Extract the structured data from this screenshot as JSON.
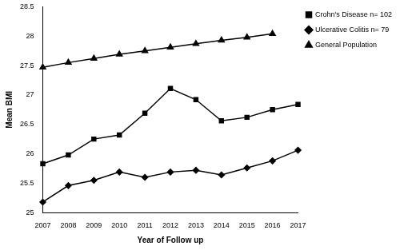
{
  "chart_data": {
    "type": "line",
    "x_label": "Year of Follow up",
    "y_label": "Mean BMI",
    "categories": [
      "2007",
      "2008",
      "2009",
      "2010",
      "2011",
      "2012",
      "2013",
      "2014",
      "2015",
      "2016",
      "2017"
    ],
    "series": [
      {
        "name": "Crohn's Disease n= 102",
        "color": "#000000",
        "marker": "square",
        "values": [
          25.83,
          25.98,
          26.25,
          26.32,
          26.69,
          27.11,
          26.92,
          26.56,
          26.62,
          26.75,
          26.84
        ]
      },
      {
        "name": "Ulcerative Colitis n= 79",
        "color": "#000000",
        "marker": "diamond",
        "values": [
          25.18,
          25.46,
          25.55,
          25.69,
          25.6,
          25.69,
          25.72,
          25.64,
          25.76,
          25.88,
          26.06
        ]
      },
      {
        "name": "General Population",
        "color": "#000000",
        "marker": "triangle",
        "values": [
          27.47,
          27.55,
          27.62,
          27.69,
          27.75,
          27.81,
          27.87,
          27.93,
          27.98,
          28.04,
          null
        ]
      }
    ],
    "ylim": [
      25,
      28.5
    ],
    "yticks": [
      25,
      25.5,
      26,
      26.5,
      27,
      27.5,
      28,
      28.5
    ],
    "grid": false,
    "legend": "right"
  }
}
